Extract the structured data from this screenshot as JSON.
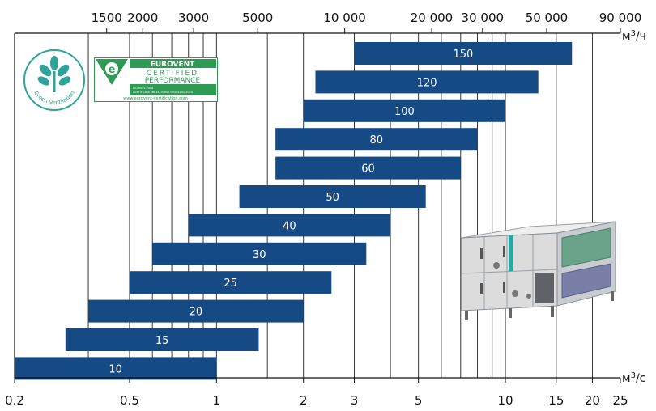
{
  "chart_data": {
    "type": "bar",
    "orientation": "horizontal-range",
    "x_scale": "log",
    "xlim": [
      0.2,
      25
    ],
    "bottom_axis": {
      "unit": "м³/с",
      "ticks": [
        0.2,
        0.5,
        1,
        2,
        3,
        5,
        10,
        15,
        20,
        25
      ],
      "tick_labels": [
        "0.2",
        "0.5",
        "1",
        "2",
        "3",
        "5",
        "10",
        "15",
        "20",
        "25"
      ]
    },
    "top_axis": {
      "unit": "м³/ч",
      "ticks": [
        1500,
        2000,
        3000,
        5000,
        10000,
        20000,
        30000,
        50000,
        90000
      ],
      "tick_labels": [
        "1500",
        "2000",
        "3000",
        "5000",
        "10 000",
        "20 000",
        "30 000",
        "50 000",
        "90 000"
      ]
    },
    "grid_x": [
      0.36,
      0.5,
      0.6,
      0.7,
      0.8,
      0.9,
      1,
      1.5,
      2,
      3,
      4,
      5,
      6,
      7,
      8,
      9,
      10,
      15,
      20
    ],
    "series": [
      {
        "label": "150",
        "min": 3.0,
        "max": 17.0
      },
      {
        "label": "120",
        "min": 2.2,
        "max": 13.0
      },
      {
        "label": "100",
        "min": 2.0,
        "max": 10.0
      },
      {
        "label": "80",
        "min": 1.6,
        "max": 8.0
      },
      {
        "label": "60",
        "min": 1.6,
        "max": 7.0
      },
      {
        "label": "50",
        "min": 1.2,
        "max": 5.3
      },
      {
        "label": "40",
        "min": 0.8,
        "max": 4.0
      },
      {
        "label": "30",
        "min": 0.6,
        "max": 3.3
      },
      {
        "label": "25",
        "min": 0.5,
        "max": 2.5
      },
      {
        "label": "20",
        "min": 0.36,
        "max": 2.0
      },
      {
        "label": "15",
        "min": 0.3,
        "max": 1.4
      },
      {
        "label": "10",
        "min": 0.2,
        "max": 1.0
      }
    ],
    "bar_color": "#164a85",
    "label_color": "#ffffff"
  },
  "logos": {
    "green_ventilation": {
      "text": "Green Ventilation",
      "color": "#2fa39a",
      "icon": "plant-icon"
    },
    "eurovent": {
      "line1": "EUROVENT",
      "line2": "CERTIFIED",
      "line3": "PERFORMANCE",
      "line4": "ISO 9001:2008",
      "line5": "CERTIFICATE No 14.05.002 ISSUED 05.2014",
      "url": "www.eurovent-certification.com",
      "color": "#2e9b55"
    }
  },
  "product_image": {
    "icon": "air-handling-unit-icon"
  }
}
